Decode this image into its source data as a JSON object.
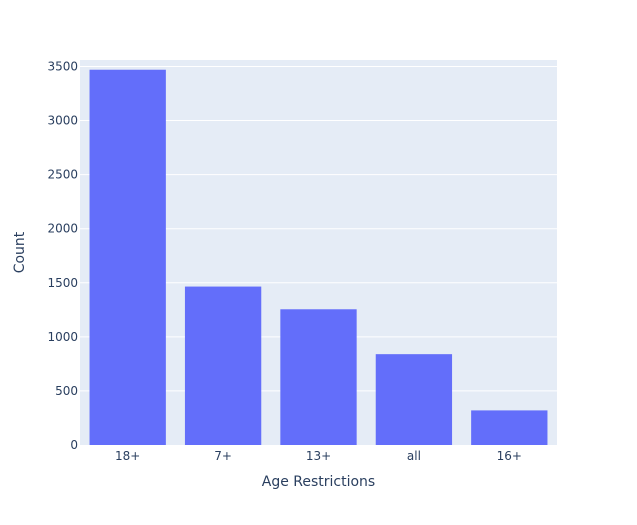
{
  "chart_data": {
    "type": "bar",
    "title": "",
    "xlabel": "Age Restrictions",
    "ylabel": "Count",
    "categories": [
      "18+",
      "7+",
      "13+",
      "all",
      "16+"
    ],
    "values": [
      3470,
      1465,
      1255,
      840,
      320
    ],
    "ylim": [
      0,
      3560
    ],
    "yticks": [
      0,
      500,
      1000,
      1500,
      2000,
      2500,
      3000,
      3500
    ],
    "ytick_labels": [
      "0",
      "500",
      "1000",
      "1500",
      "2000",
      "2500",
      "3000",
      "3500"
    ],
    "grid": true,
    "legend": "none",
    "colors": {
      "bar": "#636efa",
      "plot_background": "#e5ecf6",
      "grid": "#ffffff",
      "text": "#2a3f5f"
    }
  }
}
